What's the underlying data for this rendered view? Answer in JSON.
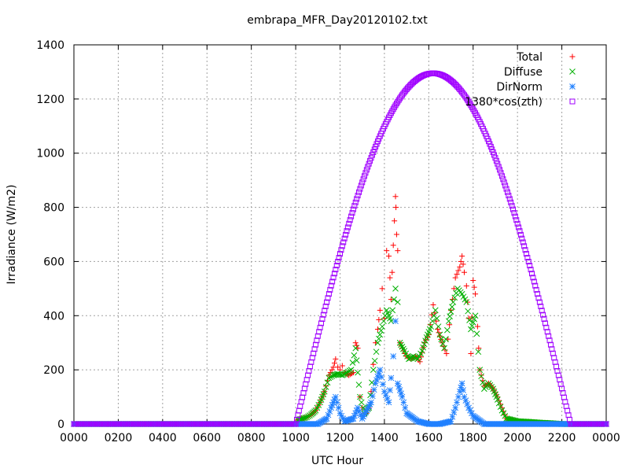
{
  "chart_data": {
    "type": "scatter",
    "title": "embrapa_MFR_Day20120102.txt",
    "xlabel": "UTC Hour",
    "ylabel": "Irradiance (W/m2)",
    "xlim": [
      0,
      24
    ],
    "ylim": [
      0,
      1400
    ],
    "grid": true,
    "legend_position": "top-right",
    "x_ticks": [
      {
        "value": 0,
        "label": "0000"
      },
      {
        "value": 2,
        "label": "0200"
      },
      {
        "value": 4,
        "label": "0400"
      },
      {
        "value": 6,
        "label": "0600"
      },
      {
        "value": 8,
        "label": "0800"
      },
      {
        "value": 10,
        "label": "1000"
      },
      {
        "value": 12,
        "label": "1200"
      },
      {
        "value": 14,
        "label": "1400"
      },
      {
        "value": 16,
        "label": "1600"
      },
      {
        "value": 18,
        "label": "1800"
      },
      {
        "value": 20,
        "label": "2000"
      },
      {
        "value": 22,
        "label": "2200"
      },
      {
        "value": 24,
        "label": "0000"
      }
    ],
    "y_ticks": [
      0,
      200,
      400,
      600,
      800,
      1000,
      1200,
      1400
    ],
    "series": [
      {
        "name": "Total",
        "marker": "plus",
        "color": "#ff0000",
        "points": [
          [
            0,
            0
          ],
          [
            1,
            0
          ],
          [
            2,
            0
          ],
          [
            3,
            0
          ],
          [
            4,
            0
          ],
          [
            5,
            0
          ],
          [
            6,
            0
          ],
          [
            7,
            0
          ],
          [
            8,
            0
          ],
          [
            9,
            0
          ],
          [
            10,
            0
          ],
          [
            10.1,
            15
          ],
          [
            10.3,
            20
          ],
          [
            10.5,
            25
          ],
          [
            10.7,
            35
          ],
          [
            10.9,
            50
          ],
          [
            11.1,
            80
          ],
          [
            11.3,
            120
          ],
          [
            11.5,
            180
          ],
          [
            11.7,
            210
          ],
          [
            11.8,
            240
          ],
          [
            11.9,
            210
          ],
          [
            12.0,
            200
          ],
          [
            12.1,
            215
          ],
          [
            12.2,
            190
          ],
          [
            12.4,
            180
          ],
          [
            12.6,
            190
          ],
          [
            12.7,
            300
          ],
          [
            12.8,
            280
          ],
          [
            12.9,
            100
          ],
          [
            13.0,
            60
          ],
          [
            13.1,
            40
          ],
          [
            13.2,
            40
          ],
          [
            13.3,
            60
          ],
          [
            13.4,
            120
          ],
          [
            13.5,
            220
          ],
          [
            13.6,
            300
          ],
          [
            13.7,
            350
          ],
          [
            13.8,
            420
          ],
          [
            13.9,
            500
          ],
          [
            14.0,
            390
          ],
          [
            14.1,
            640
          ],
          [
            14.2,
            620
          ],
          [
            14.3,
            460
          ],
          [
            14.35,
            560
          ],
          [
            14.4,
            660
          ],
          [
            14.45,
            750
          ],
          [
            14.5,
            840
          ],
          [
            14.52,
            800
          ],
          [
            14.55,
            700
          ],
          [
            14.6,
            640
          ],
          [
            14.7,
            300
          ],
          [
            14.8,
            280
          ],
          [
            15.0,
            250
          ],
          [
            15.2,
            240
          ],
          [
            15.4,
            250
          ],
          [
            15.6,
            230
          ],
          [
            15.8,
            300
          ],
          [
            16.0,
            330
          ],
          [
            16.2,
            440
          ],
          [
            16.4,
            350
          ],
          [
            16.6,
            300
          ],
          [
            16.8,
            260
          ],
          [
            17.0,
            420
          ],
          [
            17.2,
            540
          ],
          [
            17.4,
            580
          ],
          [
            17.5,
            620
          ],
          [
            17.6,
            560
          ],
          [
            17.7,
            510
          ],
          [
            17.8,
            390
          ],
          [
            17.9,
            260
          ],
          [
            18.0,
            530
          ],
          [
            18.1,
            480
          ],
          [
            18.2,
            360
          ],
          [
            18.3,
            200
          ],
          [
            18.5,
            140
          ],
          [
            18.7,
            150
          ],
          [
            18.9,
            130
          ],
          [
            19.1,
            100
          ],
          [
            19.3,
            60
          ],
          [
            19.5,
            20
          ],
          [
            20,
            10
          ],
          [
            20.5,
            8
          ],
          [
            21,
            5
          ],
          [
            21.5,
            3
          ],
          [
            22,
            0
          ],
          [
            23,
            0
          ],
          [
            24,
            0
          ]
        ]
      },
      {
        "name": "Diffuse",
        "marker": "cross",
        "color": "#00b000",
        "points": [
          [
            0,
            0
          ],
          [
            2,
            0
          ],
          [
            4,
            0
          ],
          [
            6,
            0
          ],
          [
            8,
            0
          ],
          [
            10,
            0
          ],
          [
            10.1,
            15
          ],
          [
            10.3,
            20
          ],
          [
            10.5,
            25
          ],
          [
            10.7,
            35
          ],
          [
            10.9,
            50
          ],
          [
            11.1,
            80
          ],
          [
            11.3,
            120
          ],
          [
            11.5,
            170
          ],
          [
            11.7,
            180
          ],
          [
            11.9,
            185
          ],
          [
            12.1,
            180
          ],
          [
            12.3,
            190
          ],
          [
            12.5,
            200
          ],
          [
            12.7,
            280
          ],
          [
            12.9,
            100
          ],
          [
            13.1,
            40
          ],
          [
            13.3,
            60
          ],
          [
            13.5,
            200
          ],
          [
            13.7,
            300
          ],
          [
            13.9,
            360
          ],
          [
            14.1,
            420
          ],
          [
            14.3,
            380
          ],
          [
            14.5,
            500
          ],
          [
            14.6,
            450
          ],
          [
            14.7,
            300
          ],
          [
            14.9,
            270
          ],
          [
            15.1,
            240
          ],
          [
            15.3,
            250
          ],
          [
            15.5,
            240
          ],
          [
            15.7,
            270
          ],
          [
            15.9,
            320
          ],
          [
            16.1,
            360
          ],
          [
            16.3,
            420
          ],
          [
            16.5,
            330
          ],
          [
            16.7,
            280
          ],
          [
            16.9,
            380
          ],
          [
            17.1,
            450
          ],
          [
            17.3,
            500
          ],
          [
            17.5,
            480
          ],
          [
            17.7,
            450
          ],
          [
            17.9,
            350
          ],
          [
            18.1,
            400
          ],
          [
            18.3,
            200
          ],
          [
            18.5,
            130
          ],
          [
            18.7,
            150
          ],
          [
            18.9,
            130
          ],
          [
            19.1,
            90
          ],
          [
            19.3,
            50
          ],
          [
            19.5,
            20
          ],
          [
            20,
            10
          ],
          [
            20.5,
            8
          ],
          [
            21,
            5
          ],
          [
            21.5,
            3
          ],
          [
            22,
            0
          ],
          [
            23,
            0
          ],
          [
            24,
            0
          ]
        ]
      },
      {
        "name": "DirNorm",
        "marker": "star",
        "color": "#2080ff",
        "points": [
          [
            0,
            0
          ],
          [
            2,
            0
          ],
          [
            4,
            0
          ],
          [
            6,
            0
          ],
          [
            8,
            0
          ],
          [
            10,
            0
          ],
          [
            11,
            0
          ],
          [
            11.4,
            20
          ],
          [
            11.6,
            60
          ],
          [
            11.8,
            100
          ],
          [
            12.0,
            40
          ],
          [
            12.2,
            10
          ],
          [
            12.6,
            20
          ],
          [
            12.8,
            60
          ],
          [
            13.0,
            20
          ],
          [
            13.4,
            80
          ],
          [
            13.6,
            150
          ],
          [
            13.8,
            200
          ],
          [
            14.0,
            120
          ],
          [
            14.2,
            80
          ],
          [
            14.3,
            170
          ],
          [
            14.4,
            250
          ],
          [
            14.5,
            380
          ],
          [
            14.6,
            150
          ],
          [
            14.8,
            100
          ],
          [
            15.0,
            40
          ],
          [
            15.5,
            10
          ],
          [
            16.0,
            0
          ],
          [
            16.5,
            0
          ],
          [
            17.0,
            10
          ],
          [
            17.2,
            60
          ],
          [
            17.4,
            120
          ],
          [
            17.5,
            150
          ],
          [
            17.6,
            100
          ],
          [
            17.8,
            60
          ],
          [
            18.0,
            30
          ],
          [
            18.5,
            0
          ],
          [
            19,
            0
          ],
          [
            20,
            0
          ],
          [
            21,
            0
          ],
          [
            22,
            0
          ],
          [
            23,
            0
          ],
          [
            24,
            0
          ]
        ]
      },
      {
        "name": "1380*cos(zth)",
        "marker": "square",
        "color": "#a000ff",
        "curve": {
          "start": 10.0,
          "peak": 16.2,
          "end": 22.4,
          "max": 1295
        }
      }
    ]
  }
}
